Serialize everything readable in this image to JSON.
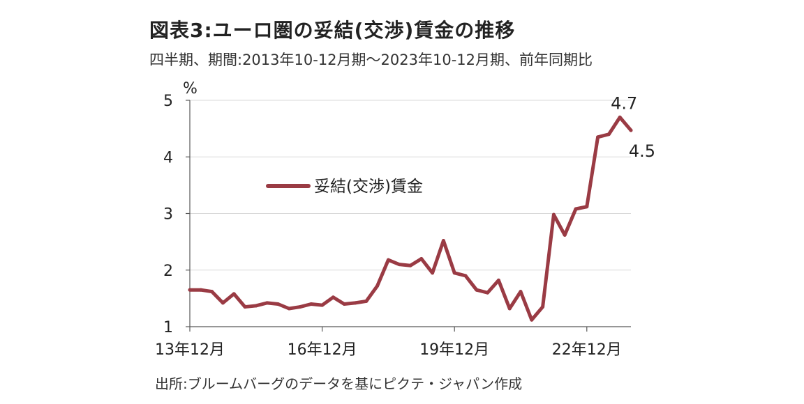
{
  "title": "図表3:ユーロ圏の妥結(交渉)賃金の推移",
  "subtitle": "四半期、期間:2013年10-12月期〜2023年10-12月期、前年同期比",
  "source": "出所:ブルームバーグのデータを基にピクテ・ジャパン作成",
  "colors": {
    "series": "#9a3b44",
    "grid": "#d9d9d9",
    "axis": "#595959"
  },
  "chart_data": {
    "type": "line",
    "ylabel": "%",
    "ylim": [
      1,
      5
    ],
    "yticks": [
      1,
      2,
      3,
      4,
      5
    ],
    "xticks": [
      {
        "index": 0,
        "label": "13年12月"
      },
      {
        "index": 12,
        "label": "16年12月"
      },
      {
        "index": 24,
        "label": "19年12月"
      },
      {
        "index": 36,
        "label": "22年12月"
      }
    ],
    "grid": "horizontal",
    "legend": "center-left",
    "series": [
      {
        "name": "妥結(交渉)賃金",
        "values": [
          1.65,
          1.65,
          1.62,
          1.42,
          1.58,
          1.35,
          1.37,
          1.42,
          1.4,
          1.32,
          1.35,
          1.4,
          1.38,
          1.52,
          1.4,
          1.42,
          1.45,
          1.72,
          2.18,
          2.1,
          2.08,
          2.2,
          1.95,
          2.52,
          1.95,
          1.9,
          1.65,
          1.6,
          1.82,
          1.32,
          1.62,
          1.12,
          1.35,
          2.98,
          2.62,
          3.08,
          3.12,
          4.35,
          4.4,
          4.7,
          4.47
        ]
      }
    ],
    "annotations": [
      {
        "index": 39,
        "label": "4.7"
      },
      {
        "index": 40,
        "label": "4.5"
      }
    ]
  }
}
